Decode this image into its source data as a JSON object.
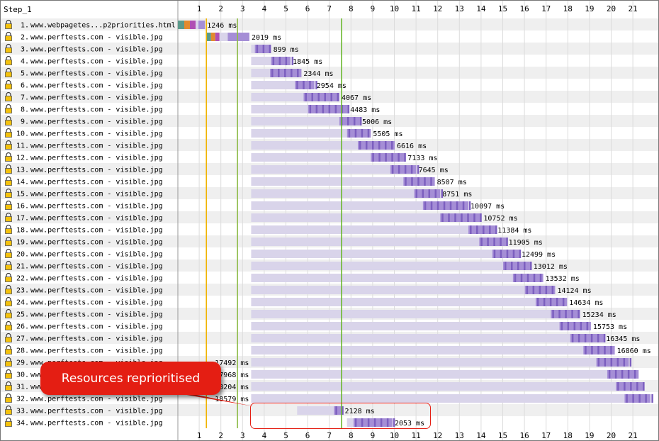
{
  "step_label": "Step_1",
  "callout_text": "Resources reprioritised",
  "colors": {
    "marker_start_render": "#f0b400",
    "marker_dom_content": "#8fbc4a",
    "marker_load": "#6ab82e",
    "bar_light": "#d9d4ea",
    "bar_download": "#a58ed6",
    "bar_download_dark": "#7c5fbf",
    "callout": "#e41e13"
  },
  "chart_data": {
    "type": "bar",
    "x_unit": "s",
    "xlim": [
      0,
      21.8
    ],
    "x_ticks": [
      1,
      2,
      3,
      4,
      5,
      6,
      7,
      8,
      9,
      10,
      11,
      12,
      13,
      14,
      15,
      16,
      17,
      18,
      19,
      20,
      21
    ],
    "markers": [
      {
        "kind": "start-render",
        "x": 0.4
      },
      {
        "kind": "dom-content",
        "x": 2.75
      },
      {
        "kind": "load",
        "x": 7.55
      }
    ],
    "requests": [
      {
        "n": "1.",
        "label": "www.webpagetes...p2priorities.html",
        "time": "1246 ms",
        "start": 0.0,
        "dl": 0.95,
        "end": 1.25,
        "html": true
      },
      {
        "n": "2.",
        "label": "www.perftests.com - visible.jpg",
        "time": "2019 ms",
        "start": 1.3,
        "dl": 2.3,
        "end": 3.3,
        "dns": true
      },
      {
        "n": "3.",
        "label": "www.perftests.com - visible.jpg",
        "time": "899 ms",
        "start": 3.38,
        "dl": 3.55,
        "end": 4.3
      },
      {
        "n": "4.",
        "label": "www.perftests.com - visible.jpg",
        "time": "1845 ms",
        "start": 3.38,
        "dl": 4.3,
        "end": 5.2
      },
      {
        "n": "5.",
        "label": "www.perftests.com - visible.jpg",
        "time": "2344 ms",
        "start": 3.38,
        "dl": 4.25,
        "end": 5.7
      },
      {
        "n": "6.",
        "label": "www.perftests.com - visible.jpg",
        "time": "2954 ms",
        "start": 3.38,
        "dl": 5.4,
        "end": 6.3
      },
      {
        "n": "7.",
        "label": "www.perftests.com - visible.jpg",
        "time": "4067 ms",
        "start": 3.38,
        "dl": 5.8,
        "end": 7.45
      },
      {
        "n": "8.",
        "label": "www.perftests.com - visible.jpg",
        "time": "4483 ms",
        "start": 3.38,
        "dl": 6.0,
        "end": 7.85
      },
      {
        "n": "9.",
        "label": "www.perftests.com - visible.jpg",
        "time": "5006 ms",
        "start": 3.38,
        "dl": 7.45,
        "end": 8.4
      },
      {
        "n": "10.",
        "label": "www.perftests.com - visible.jpg",
        "time": "5505 ms",
        "start": 3.38,
        "dl": 7.8,
        "end": 8.9
      },
      {
        "n": "11.",
        "label": "www.perftests.com - visible.jpg",
        "time": "6616 ms",
        "start": 3.38,
        "dl": 8.3,
        "end": 10.0
      },
      {
        "n": "12.",
        "label": "www.perftests.com - visible.jpg",
        "time": "7133 ms",
        "start": 3.38,
        "dl": 8.9,
        "end": 10.5
      },
      {
        "n": "13.",
        "label": "www.perftests.com - visible.jpg",
        "time": "7645 ms",
        "start": 3.38,
        "dl": 9.8,
        "end": 11.0
      },
      {
        "n": "14.",
        "label": "www.perftests.com - visible.jpg",
        "time": "8507 ms",
        "start": 3.38,
        "dl": 10.4,
        "end": 11.85
      },
      {
        "n": "15.",
        "label": "www.perftests.com - visible.jpg",
        "time": "8751 ms",
        "start": 3.38,
        "dl": 10.9,
        "end": 12.1
      },
      {
        "n": "16.",
        "label": "www.perftests.com - visible.jpg",
        "time": "10097 ms",
        "start": 3.38,
        "dl": 11.3,
        "end": 13.4
      },
      {
        "n": "17.",
        "label": "www.perftests.com - visible.jpg",
        "time": "10752 ms",
        "start": 3.38,
        "dl": 12.1,
        "end": 14.0
      },
      {
        "n": "18.",
        "label": "www.perftests.com - visible.jpg",
        "time": "11384 ms",
        "start": 3.38,
        "dl": 13.4,
        "end": 14.65
      },
      {
        "n": "19.",
        "label": "www.perftests.com - visible.jpg",
        "time": "11905 ms",
        "start": 3.38,
        "dl": 13.9,
        "end": 15.15
      },
      {
        "n": "20.",
        "label": "www.perftests.com - visible.jpg",
        "time": "12499 ms",
        "start": 3.38,
        "dl": 14.5,
        "end": 15.75
      },
      {
        "n": "21.",
        "label": "www.perftests.com - visible.jpg",
        "time": "13012 ms",
        "start": 3.38,
        "dl": 15.0,
        "end": 16.3
      },
      {
        "n": "22.",
        "label": "www.perftests.com - visible.jpg",
        "time": "13532 ms",
        "start": 3.38,
        "dl": 15.45,
        "end": 16.85
      },
      {
        "n": "23.",
        "label": "www.perftests.com - visible.jpg",
        "time": "14124 ms",
        "start": 3.38,
        "dl": 16.0,
        "end": 17.4
      },
      {
        "n": "24.",
        "label": "www.perftests.com - visible.jpg",
        "time": "14634 ms",
        "start": 3.38,
        "dl": 16.5,
        "end": 17.95
      },
      {
        "n": "25.",
        "label": "www.perftests.com - visible.jpg",
        "time": "15234 ms",
        "start": 3.38,
        "dl": 17.2,
        "end": 18.55
      },
      {
        "n": "26.",
        "label": "www.perftests.com - visible.jpg",
        "time": "15753 ms",
        "start": 3.38,
        "dl": 17.6,
        "end": 19.05
      },
      {
        "n": "27.",
        "label": "www.perftests.com - visible.jpg",
        "time": "16345 ms",
        "start": 3.38,
        "dl": 18.1,
        "end": 19.65
      },
      {
        "n": "28.",
        "label": "www.perftests.com - visible.jpg",
        "time": "16860 ms",
        "start": 3.38,
        "dl": 18.7,
        "end": 20.15
      },
      {
        "n": "29.",
        "label": "www.perftests.com - visible.jpg",
        "time": "17492 ms",
        "start": 3.38,
        "dl": 19.3,
        "end": 20.8,
        "label_left": true
      },
      {
        "n": "30.",
        "label": "www.perftests.com - visible.jpg",
        "time": "17968 ms",
        "start": 3.38,
        "dl": 19.8,
        "end": 21.25,
        "label_left": true
      },
      {
        "n": "31.",
        "label": "www.perftests.com - visible.jpg",
        "time": "18204 ms",
        "start": 3.38,
        "dl": 20.2,
        "end": 21.5,
        "label_left": true
      },
      {
        "n": "32.",
        "label": "www.perftests.com - visible.jpg",
        "time": "18579 ms",
        "start": 3.38,
        "dl": 20.6,
        "end": 21.8,
        "label_left": true
      },
      {
        "n": "33.",
        "label": "www.perftests.com - visible.jpg",
        "time": "2128 ms",
        "start": 5.5,
        "dl": 7.2,
        "end": 7.6
      },
      {
        "n": "34.",
        "label": "www.perftests.com - visible.jpg",
        "time": "2053 ms",
        "start": 7.8,
        "dl": 8.1,
        "end": 9.9
      }
    ]
  }
}
